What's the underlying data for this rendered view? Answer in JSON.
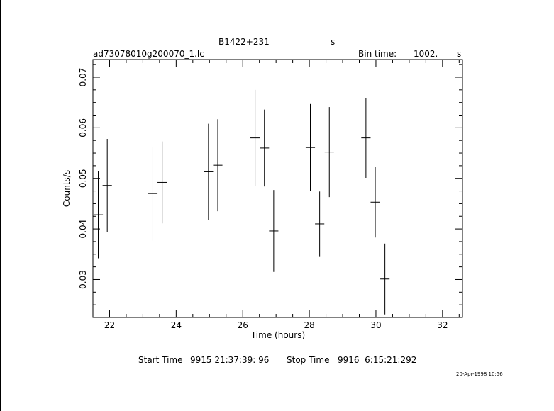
{
  "header": {
    "source": "B1422+231",
    "source_unit": "s",
    "file": "ad73078010g200070_1.lc",
    "bin_label": "Bin time:",
    "bin_value": "1002.",
    "bin_unit": "s"
  },
  "footer": {
    "start_label": "Start Time",
    "start_value": "9915 21:37:39: 96",
    "stop_label": "Stop Time",
    "stop_value": "9916  6:15:21:292",
    "date_stamp": "20-Apr-1998 10:56"
  },
  "chart_data": {
    "type": "scatter",
    "xlabel": "Time (hours)",
    "ylabel": "Counts/s",
    "xlim": [
      21.5,
      32.6
    ],
    "ylim": [
      0.0225,
      0.0735
    ],
    "xticks": [
      "22",
      "24",
      "26",
      "28",
      "30",
      "32"
    ],
    "yticks": [
      "0.03",
      "0.04",
      "0.05",
      "0.06",
      "0.07"
    ],
    "series": [
      {
        "points": [
          {
            "x": 21.66,
            "y": 0.0428,
            "xerr": 0.14,
            "yerr": 0.0086
          },
          {
            "x": 21.93,
            "y": 0.0486,
            "xerr": 0.14,
            "yerr": 0.0092
          },
          {
            "x": 23.3,
            "y": 0.047,
            "xerr": 0.14,
            "yerr": 0.0093
          },
          {
            "x": 23.58,
            "y": 0.0492,
            "xerr": 0.14,
            "yerr": 0.0081
          },
          {
            "x": 24.97,
            "y": 0.0513,
            "xerr": 0.14,
            "yerr": 0.0095
          },
          {
            "x": 25.25,
            "y": 0.0526,
            "xerr": 0.14,
            "yerr": 0.0091
          },
          {
            "x": 26.37,
            "y": 0.058,
            "xerr": 0.14,
            "yerr": 0.0095
          },
          {
            "x": 26.65,
            "y": 0.056,
            "xerr": 0.14,
            "yerr": 0.0076
          },
          {
            "x": 26.93,
            "y": 0.0396,
            "xerr": 0.14,
            "yerr": 0.0081
          },
          {
            "x": 28.03,
            "y": 0.0561,
            "xerr": 0.14,
            "yerr": 0.0086
          },
          {
            "x": 28.31,
            "y": 0.041,
            "xerr": 0.14,
            "yerr": 0.0064
          },
          {
            "x": 28.6,
            "y": 0.0552,
            "xerr": 0.14,
            "yerr": 0.0089
          },
          {
            "x": 29.7,
            "y": 0.058,
            "xerr": 0.14,
            "yerr": 0.0079
          },
          {
            "x": 29.98,
            "y": 0.0453,
            "xerr": 0.14,
            "yerr": 0.007
          },
          {
            "x": 30.27,
            "y": 0.0301,
            "xerr": 0.14,
            "yerr": 0.007
          }
        ]
      }
    ]
  }
}
